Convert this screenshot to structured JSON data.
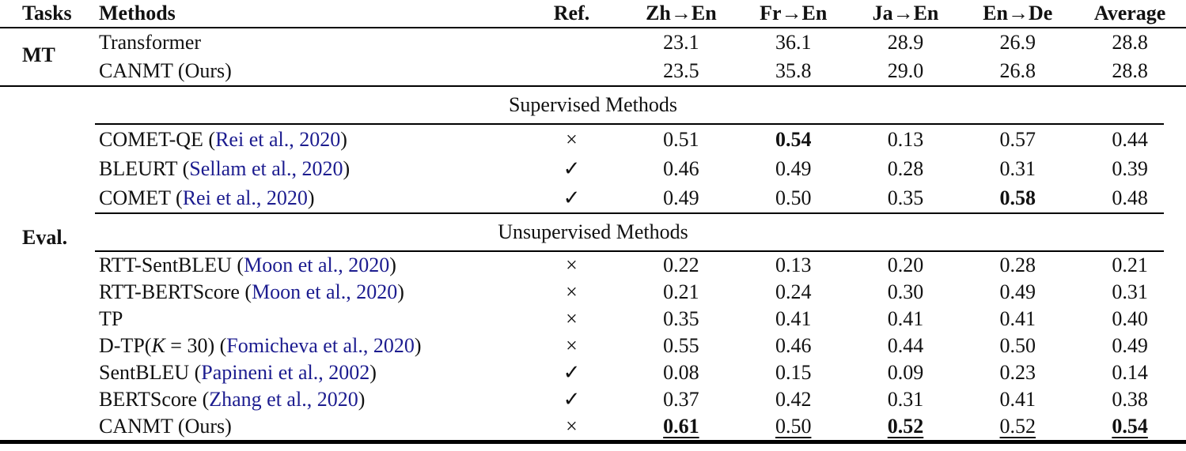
{
  "colors": {
    "text": "#111111",
    "citation_link": "#1c1c8f",
    "rule": "#000000"
  },
  "columns": {
    "tasks": "Tasks",
    "methods": "Methods",
    "ref": "Ref.",
    "c1": "Zh→En",
    "c2": "Fr→En",
    "c3": "Ja→En",
    "c4": "En→De",
    "c5": "Average"
  },
  "tasks": {
    "mt": "MT",
    "eval": "Eval."
  },
  "groups": {
    "supervised": "Supervised Methods",
    "unsupervised": "Unsupervised Methods"
  },
  "rows": {
    "transformer": {
      "m1": "Transformer",
      "ref": "",
      "v": [
        "23.1",
        "36.1",
        "28.9",
        "26.9",
        "28.8"
      ]
    },
    "canmt_mt": {
      "m1": "CANMT (Ours)",
      "ref": "",
      "v": [
        "23.5",
        "35.8",
        "29.0",
        "26.8",
        "28.8"
      ]
    },
    "comet_qe": {
      "m1": "COMET-QE (",
      "cite": "Rei et al., 2020",
      "m3": ")",
      "ref": "×",
      "v": [
        "0.51",
        "0.54",
        "0.13",
        "0.57",
        "0.44"
      ]
    },
    "bleurt": {
      "m1": "BLEURT (",
      "cite": "Sellam et al., 2020",
      "m3": ")",
      "ref": "✓",
      "v": [
        "0.46",
        "0.49",
        "0.28",
        "0.31",
        "0.39"
      ]
    },
    "comet": {
      "m1": "COMET (",
      "cite": "Rei et al., 2020",
      "m3": ")",
      "ref": "✓",
      "v": [
        "0.49",
        "0.50",
        "0.35",
        "0.58",
        "0.48"
      ]
    },
    "rtt_sentbleu": {
      "m1": "RTT-SentBLEU (",
      "cite": "Moon et al., 2020",
      "m3": ")",
      "ref": "×",
      "v": [
        "0.22",
        "0.13",
        "0.20",
        "0.28",
        "0.21"
      ]
    },
    "rtt_bertscore": {
      "m1": "RTT-BERTScore (",
      "cite": "Moon et al., 2020",
      "m3": ")",
      "ref": "×",
      "v": [
        "0.21",
        "0.24",
        "0.30",
        "0.49",
        "0.31"
      ]
    },
    "tp": {
      "m1": "TP",
      "ref": "×",
      "v": [
        "0.35",
        "0.41",
        "0.41",
        "0.41",
        "0.40"
      ]
    },
    "dtp": {
      "m1": "D-TP(",
      "k": "K",
      "m2": " = 30) (",
      "cite": "Fomicheva et al., 2020",
      "m3": ")",
      "ref": "×",
      "v": [
        "0.55",
        "0.46",
        "0.44",
        "0.50",
        "0.49"
      ]
    },
    "sentbleu": {
      "m1": "SentBLEU (",
      "cite": "Papineni et al., 2002",
      "m3": ")",
      "ref": "✓",
      "v": [
        "0.08",
        "0.15",
        "0.09",
        "0.23",
        "0.14"
      ]
    },
    "bertscore": {
      "m1": "BERTScore (",
      "cite": "Zhang et al., 2020",
      "m3": ")",
      "ref": "✓",
      "v": [
        "0.37",
        "0.42",
        "0.31",
        "0.41",
        "0.38"
      ]
    },
    "canmt_eval": {
      "m1": "CANMT (Ours)",
      "ref": "×",
      "v": [
        "0.61",
        "0.50",
        "0.52",
        "0.52",
        "0.54"
      ]
    }
  }
}
